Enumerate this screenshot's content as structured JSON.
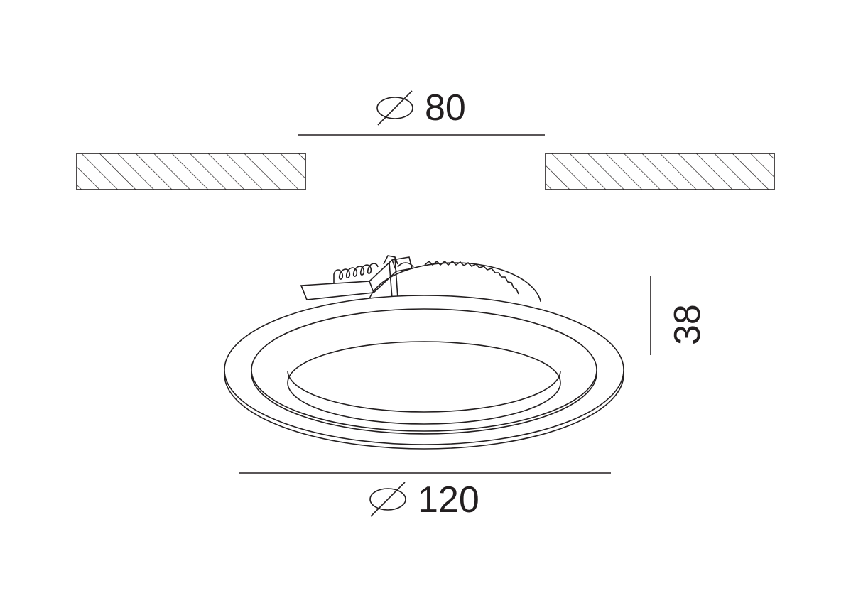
{
  "drawing": {
    "cutout_dimension": {
      "symbol": "diameter",
      "value": "80"
    },
    "outer_dimension": {
      "symbol": "diameter",
      "value": "120"
    },
    "height_dimension": {
      "value": "38"
    }
  },
  "colors": {
    "line": "#231f20",
    "background": "#ffffff"
  }
}
